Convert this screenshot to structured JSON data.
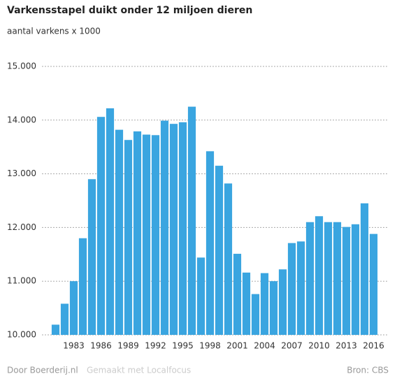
{
  "chart_data": {
    "type": "bar",
    "title": "Varkensstapel duikt onder 12 miljoen dieren",
    "subtitle": "aantal varkens x 1000",
    "categories": [
      null,
      null,
      "1983",
      null,
      null,
      "1986",
      null,
      null,
      "1989",
      null,
      null,
      "1992",
      null,
      null,
      "1995",
      null,
      null,
      "1998",
      null,
      null,
      "2001",
      null,
      null,
      "2004",
      null,
      null,
      "2007",
      null,
      null,
      "2010",
      null,
      null,
      "2013",
      null,
      null,
      "2016"
    ],
    "values": [
      10190,
      10580,
      11000,
      11800,
      12900,
      14060,
      14220,
      13820,
      13630,
      13790,
      13730,
      13720,
      13990,
      13930,
      13960,
      14250,
      11440,
      13420,
      13150,
      12820,
      11510,
      11160,
      10760,
      11150,
      11000,
      11220,
      11710,
      11740,
      12100,
      12210,
      12100,
      12100,
      12010,
      12060,
      12450,
      11880
    ],
    "color": "#3aa5e0",
    "ylim": [
      10000,
      15000
    ],
    "yticks": [
      {
        "value": 10000,
        "label": "10.000"
      },
      {
        "value": 11000,
        "label": "11.000"
      },
      {
        "value": 12000,
        "label": "12.000"
      },
      {
        "value": 13000,
        "label": "13.000"
      },
      {
        "value": 14000,
        "label": "14.000"
      },
      {
        "value": 15000,
        "label": "15.000"
      }
    ],
    "grid": true,
    "footer": {
      "author": "Door Boerderij.nl",
      "tool": "Gemaakt met Localfocus",
      "source": "Bron:  CBS"
    }
  }
}
